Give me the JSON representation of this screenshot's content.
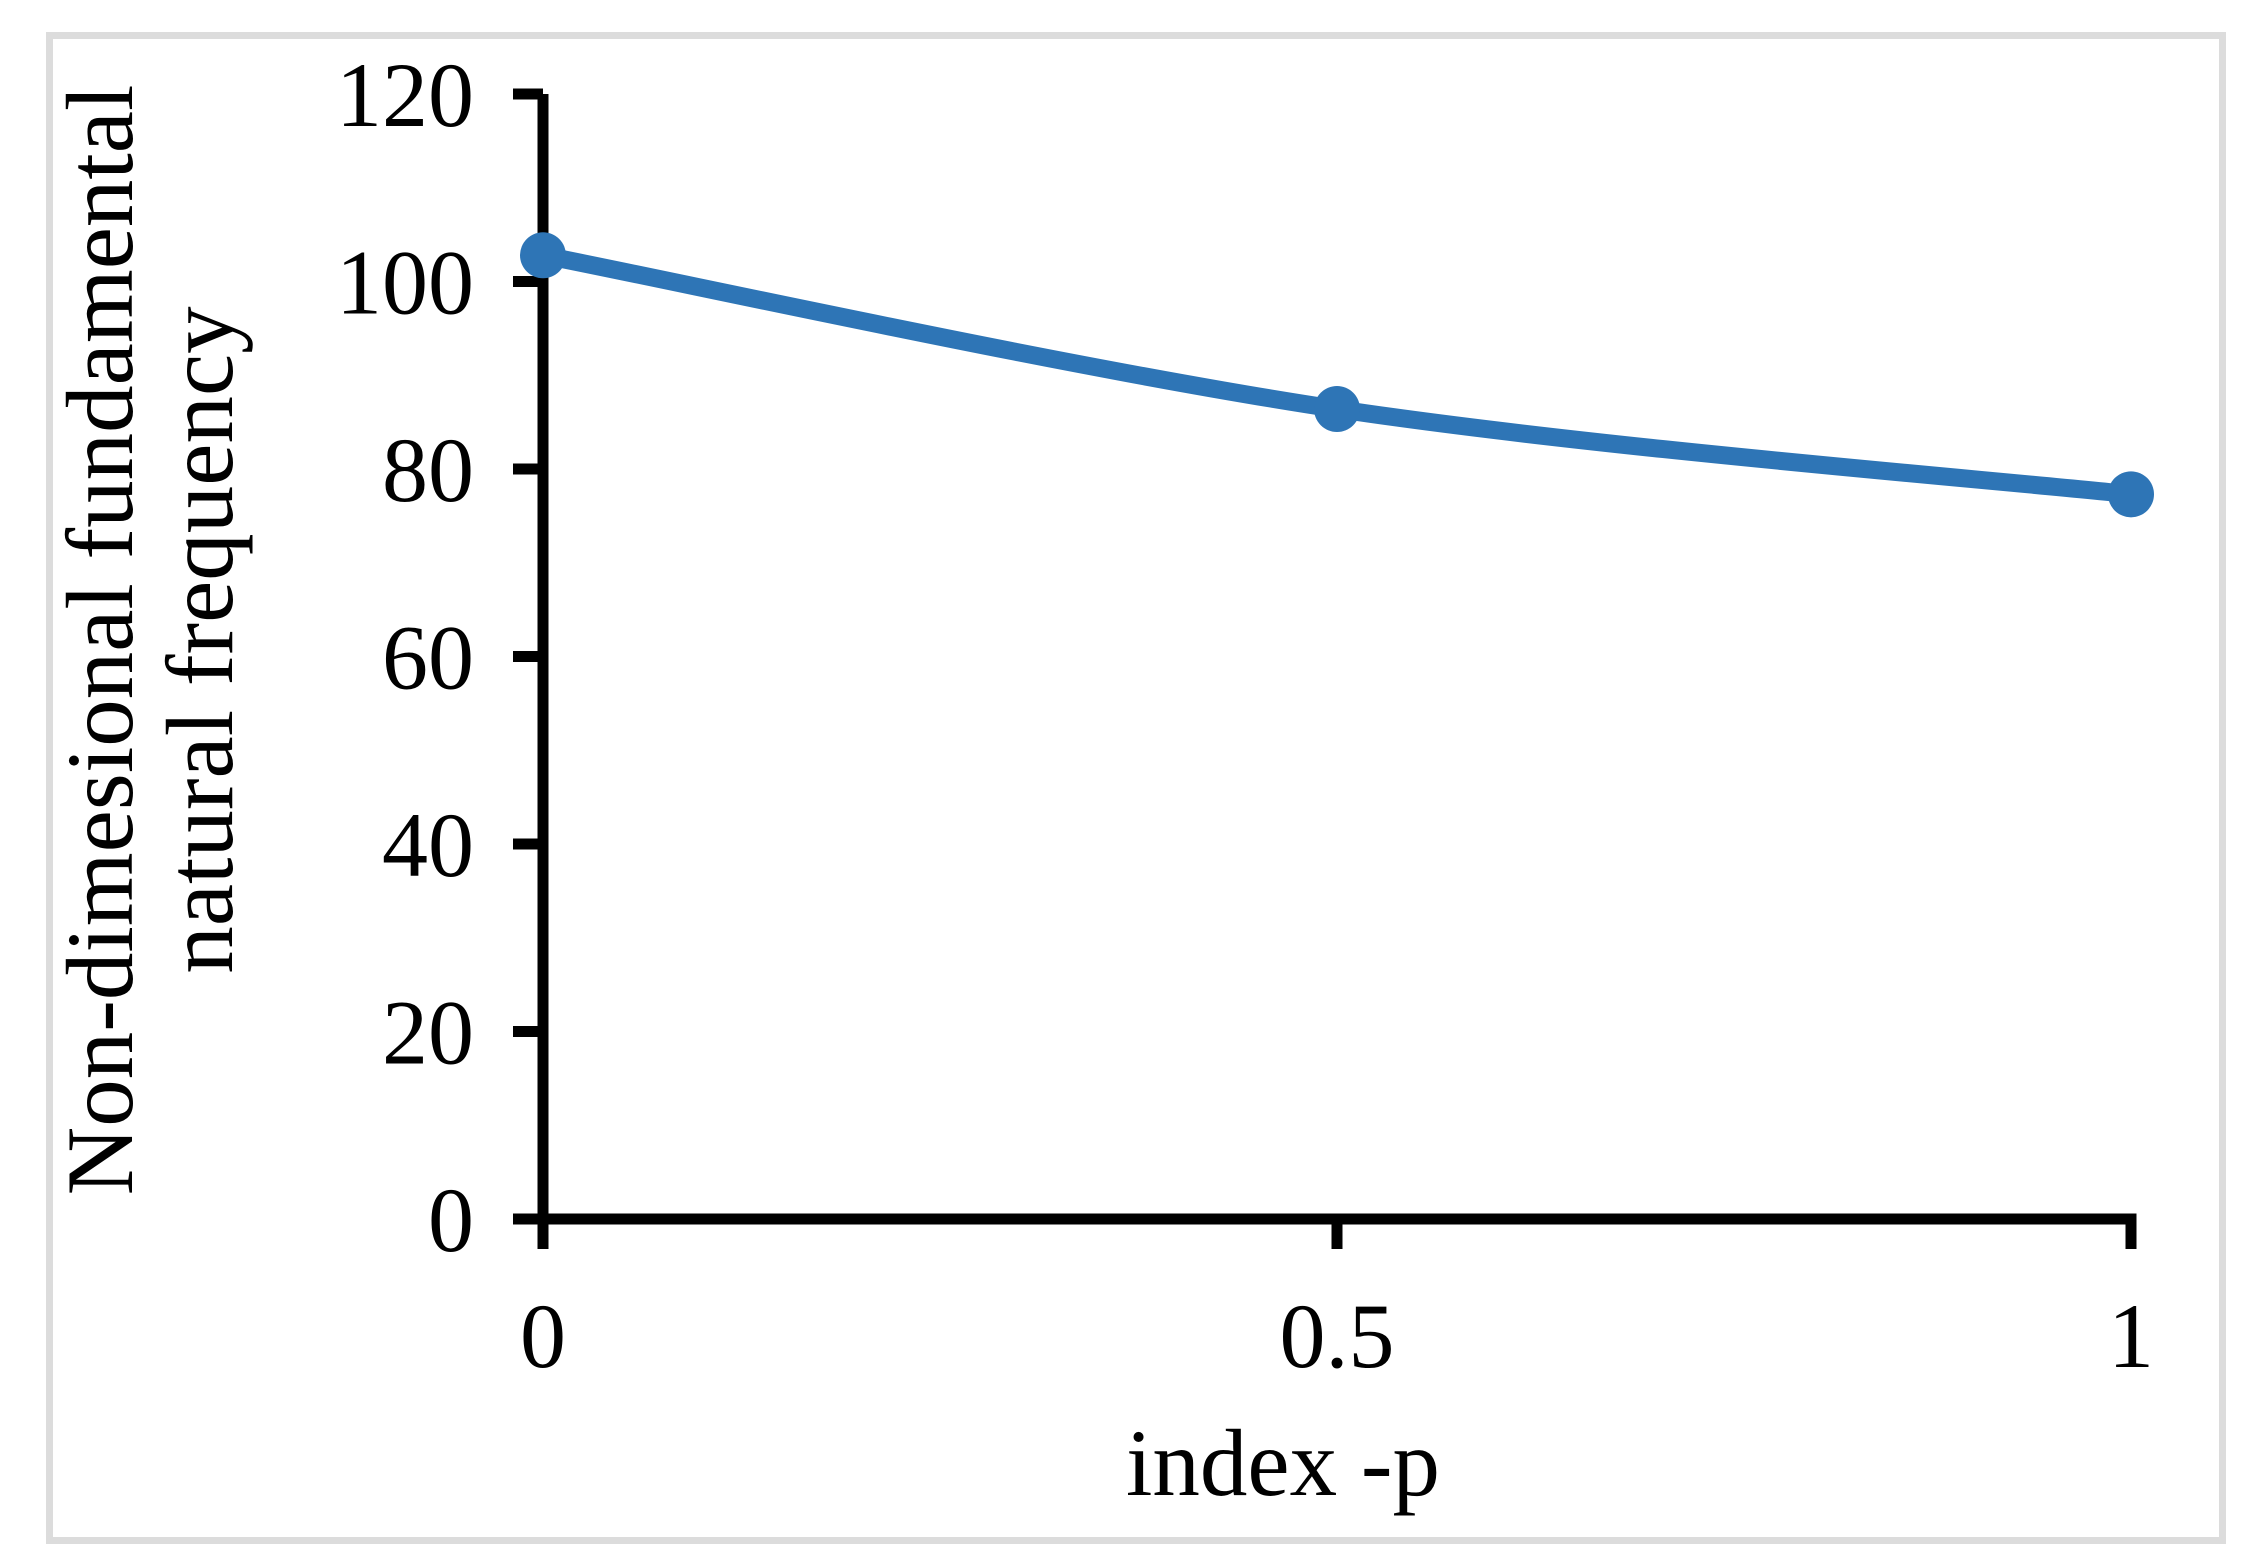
{
  "figure": {
    "background_color": "#FFFFFF",
    "border_color": "#DCDCDC"
  },
  "chart_data": {
    "type": "line",
    "title": "",
    "x": [
      0,
      0.5,
      1
    ],
    "x_tick_labels": [
      "0",
      "0.5",
      "1"
    ],
    "values": [
      102.8,
      86.4,
      77.3
    ],
    "xlabel": "index -p",
    "ylabel_line1": "Non-dimesional fundamental",
    "ylabel_line2": "natural frequency",
    "xlim": [
      0,
      1
    ],
    "ylim": [
      0,
      120
    ],
    "yticks": [
      0,
      20,
      40,
      60,
      80,
      100,
      120
    ],
    "grid": false,
    "legend": "none",
    "line_color": "#2E75B6",
    "axis_color": "#000000",
    "marker": "circle",
    "smooth": true
  }
}
